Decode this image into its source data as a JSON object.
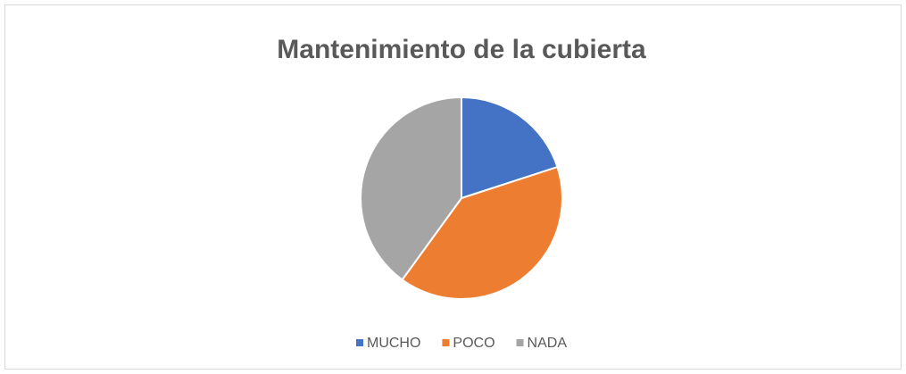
{
  "chart_data": {
    "type": "pie",
    "title": "Mantenimiento de la cubierta",
    "categories": [
      "MUCHO",
      "POCO",
      "NADA"
    ],
    "values": [
      20,
      40,
      40
    ],
    "colors": [
      "#4472c4",
      "#ed7d31",
      "#a5a5a5"
    ],
    "legend": "bottom"
  }
}
